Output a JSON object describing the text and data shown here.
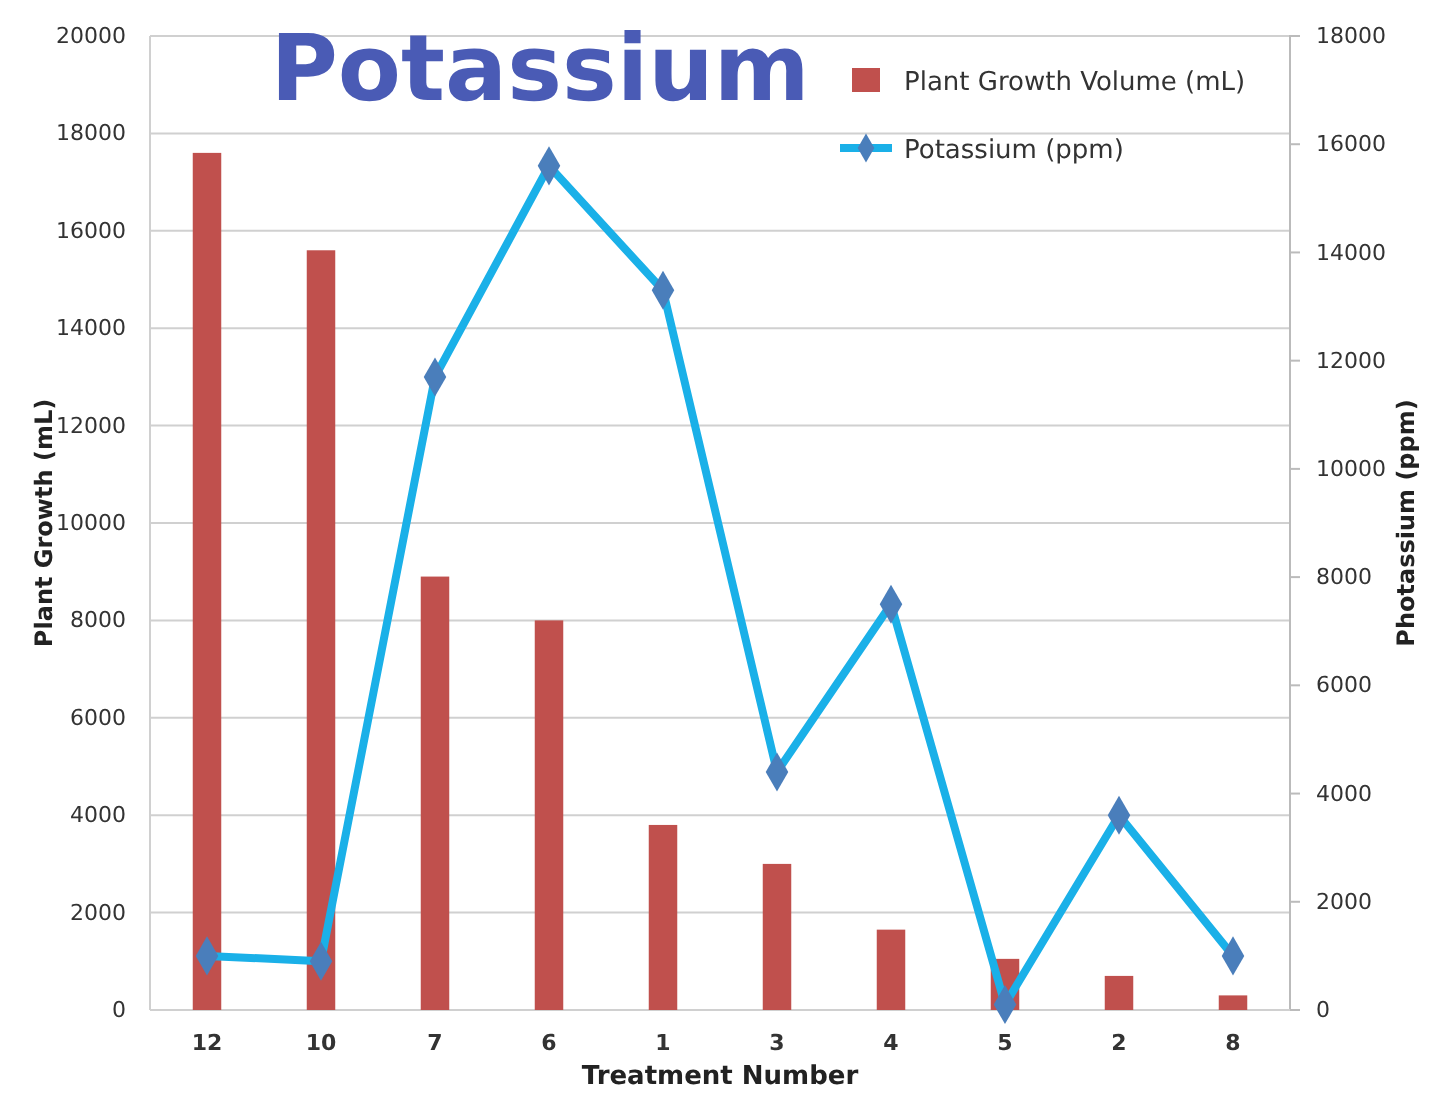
{
  "chart_data": {
    "type": "bar",
    "title": "Potassium",
    "xlabel": "Treatment Number",
    "ylabel": "Plant Growth (mL)",
    "y2label": "Photassium (ppm)",
    "categories": [
      "12",
      "10",
      "7",
      "6",
      "1",
      "3",
      "4",
      "5",
      "2",
      "8"
    ],
    "series": [
      {
        "name": "Plant Growth Volume (mL)",
        "color": "#c0504d",
        "values": [
          17600,
          15600,
          8900,
          8000,
          3800,
          3000,
          1650,
          1050,
          700,
          300
        ]
      },
      {
        "name": "Potassium (ppm)",
        "type": "line",
        "axis": "y2",
        "color": "#1ab0e8",
        "marker": "diamond",
        "values": [
          1000,
          900,
          11700,
          15600,
          13300,
          4400,
          7500,
          100,
          3600,
          1000
        ]
      }
    ],
    "ylim": [
      0,
      20000
    ],
    "yticks": [
      0,
      2000,
      4000,
      6000,
      8000,
      10000,
      12000,
      14000,
      16000,
      18000,
      20000
    ],
    "y2lim": [
      0,
      18000
    ],
    "y2ticks": [
      0,
      2000,
      4000,
      6000,
      8000,
      10000,
      12000,
      14000,
      16000,
      18000
    ],
    "grid": "y",
    "legend": "top right"
  }
}
